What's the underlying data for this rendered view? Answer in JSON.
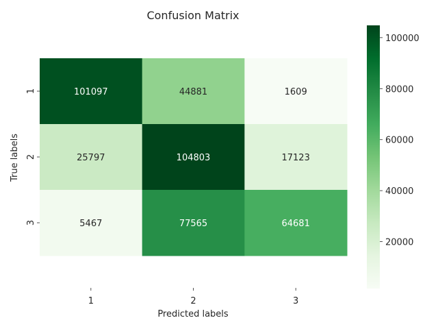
{
  "chart_data": {
    "type": "heatmap",
    "title": "Confusion Matrix",
    "xlabel": "Predicted labels",
    "ylabel": "True labels",
    "x_categories": [
      "1",
      "2",
      "3"
    ],
    "y_categories": [
      "1",
      "2",
      "3"
    ],
    "matrix": [
      [
        101097,
        44881,
        1609
      ],
      [
        25797,
        104803,
        17123
      ],
      [
        5467,
        77565,
        64681
      ]
    ],
    "colormap": "Greens",
    "colorbar": {
      "min": 1609,
      "max": 104803,
      "ticks": [
        20000,
        40000,
        60000,
        80000,
        100000
      ],
      "tick_labels": [
        "20000",
        "40000",
        "60000",
        "80000",
        "100000"
      ]
    },
    "grid": false,
    "legend": "colorbar-right"
  }
}
